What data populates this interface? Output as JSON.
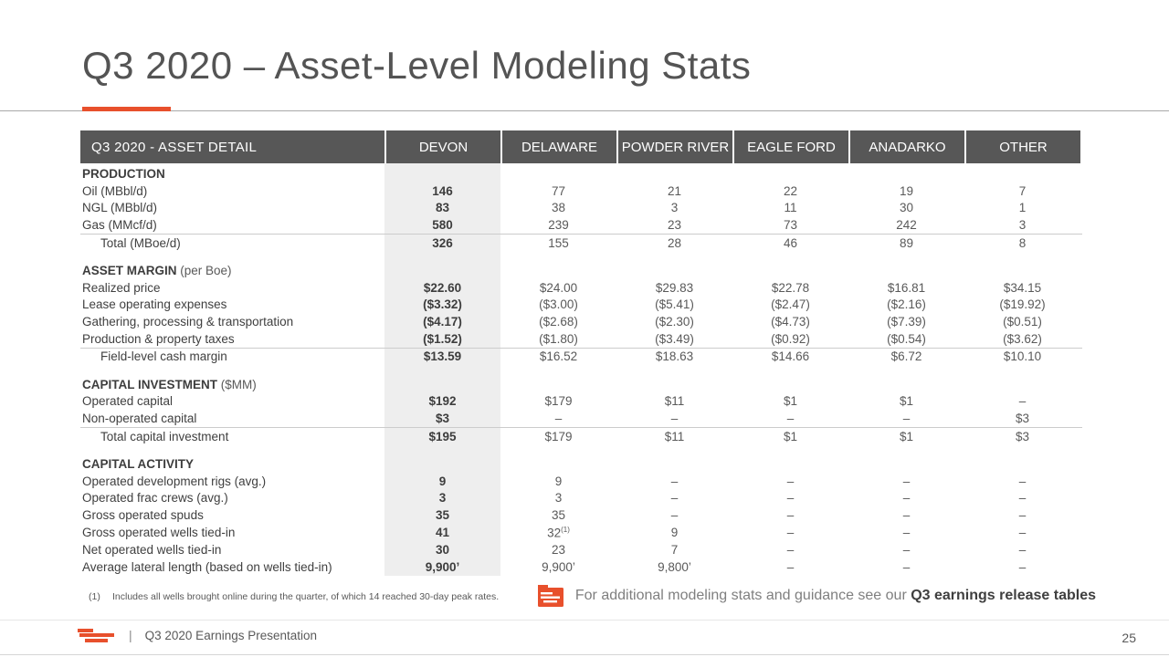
{
  "title": "Q3 2020 – Asset-Level Modeling Stats",
  "table": {
    "columns": [
      "Q3 2020 - ASSET DETAIL",
      "DEVON",
      "DELAWARE",
      "POWDER RIVER",
      "EAGLE FORD",
      "ANADARKO",
      "OTHER"
    ],
    "sections": [
      {
        "heading": "PRODUCTION",
        "qualifier": "",
        "rows": [
          {
            "label": "Oil (MBbl/d)",
            "values": [
              "146",
              "77",
              "21",
              "22",
              "19",
              "7"
            ]
          },
          {
            "label": "NGL (MBbl/d)",
            "values": [
              "83",
              "38",
              "3",
              "11",
              "30",
              "1"
            ]
          },
          {
            "label": "Gas (MMcf/d)",
            "values": [
              "580",
              "239",
              "23",
              "73",
              "242",
              "3"
            ]
          },
          {
            "label": "Total (MBoe/d)",
            "indent": true,
            "total": true,
            "values": [
              "326",
              "155",
              "28",
              "46",
              "89",
              "8"
            ]
          }
        ]
      },
      {
        "heading": "ASSET MARGIN",
        "qualifier": "(per Boe)",
        "rows": [
          {
            "label": "Realized price",
            "values": [
              "$22.60",
              "$24.00",
              "$29.83",
              "$22.78",
              "$16.81",
              "$34.15"
            ]
          },
          {
            "label": "Lease operating expenses",
            "values": [
              "($3.32)",
              "($3.00)",
              "($5.41)",
              "($2.47)",
              "($2.16)",
              "($19.92)"
            ]
          },
          {
            "label": "Gathering, processing & transportation",
            "values": [
              "($4.17)",
              "($2.68)",
              "($2.30)",
              "($4.73)",
              "($7.39)",
              "($0.51)"
            ]
          },
          {
            "label": "Production & property taxes",
            "values": [
              "($1.52)",
              "($1.80)",
              "($3.49)",
              "($0.92)",
              "($0.54)",
              "($3.62)"
            ]
          },
          {
            "label": "Field-level cash margin",
            "indent": true,
            "total": true,
            "values": [
              "$13.59",
              "$16.52",
              "$18.63",
              "$14.66",
              "$6.72",
              "$10.10"
            ]
          }
        ]
      },
      {
        "heading": "CAPITAL INVESTMENT",
        "qualifier": "($MM)",
        "rows": [
          {
            "label": "Operated capital",
            "values": [
              "$192",
              "$179",
              "$11",
              "$1",
              "$1",
              "–"
            ]
          },
          {
            "label": "Non-operated capital",
            "values": [
              "$3",
              "–",
              "–",
              "–",
              "–",
              "$3"
            ]
          },
          {
            "label": "Total capital investment",
            "indent": true,
            "total": true,
            "values": [
              "$195",
              "$179",
              "$11",
              "$1",
              "$1",
              "$3"
            ]
          }
        ]
      },
      {
        "heading": "CAPITAL ACTIVITY",
        "qualifier": "",
        "rows": [
          {
            "label": "Operated development rigs (avg.)",
            "values": [
              "9",
              "9",
              "–",
              "–",
              "–",
              "–"
            ]
          },
          {
            "label": "Operated frac crews (avg.)",
            "values": [
              "3",
              "3",
              "–",
              "–",
              "–",
              "–"
            ]
          },
          {
            "label": "Gross operated spuds",
            "values": [
              "35",
              "35",
              "–",
              "–",
              "–",
              "–"
            ]
          },
          {
            "label": "Gross operated wells tied-in",
            "values": [
              "41",
              {
                "v": "32",
                "sup": "(1)"
              },
              "9",
              "–",
              "–",
              "–"
            ]
          },
          {
            "label": "Net operated wells tied-in",
            "values": [
              "30",
              "23",
              "7",
              "–",
              "–",
              "–"
            ]
          },
          {
            "label": "Average lateral length (based on wells tied-in)",
            "values": [
              "9,900’",
              "9,900’",
              "9,800’",
              "–",
              "–",
              "–"
            ]
          }
        ]
      }
    ]
  },
  "footnote": {
    "marker": "(1)",
    "text": "Includes all wells brought online during the quarter, of which 14 reached 30-day peak rates."
  },
  "callout": {
    "lead": "For additional modeling stats and guidance see our ",
    "emphasis": "Q3 earnings release tables"
  },
  "footer": {
    "divider": "|",
    "presentation": "Q3 2020 Earnings Presentation",
    "page": "25"
  },
  "colors": {
    "accent": "#e8502c",
    "header_bg": "#575757",
    "devon_column_shade": "#eeeeee"
  }
}
